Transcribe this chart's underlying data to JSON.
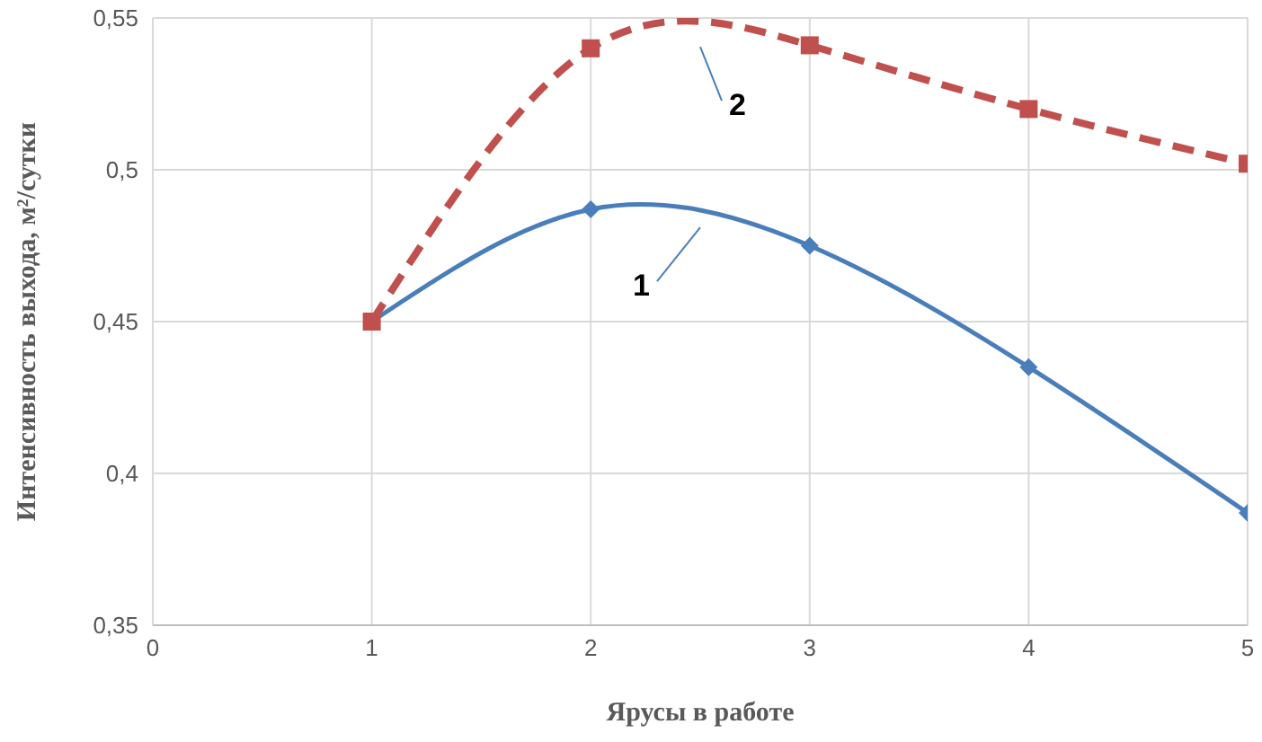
{
  "chart_data": {
    "type": "line",
    "xlabel": "Ярусы в работе",
    "ylabel": "Интенсивность выхода, м²/сутки",
    "x": [
      1,
      2,
      3,
      4,
      5
    ],
    "series": [
      {
        "name": "1",
        "color": "#4a7ebb",
        "values": [
          0.45,
          0.487,
          0.475,
          0.435,
          0.387
        ],
        "marker": "diamond",
        "line_style": "solid"
      },
      {
        "name": "2",
        "color": "#c0504d",
        "values": [
          0.45,
          0.54,
          0.541,
          0.52,
          0.502
        ],
        "marker": "square",
        "line_style": "dashed"
      }
    ],
    "xlim": [
      0,
      5
    ],
    "xticks": [
      0,
      1,
      2,
      3,
      4,
      5
    ],
    "ylim": [
      0.35,
      0.55
    ],
    "yticks": [
      {
        "value": 0.35,
        "label": "0,35"
      },
      {
        "value": 0.4,
        "label": "0,4"
      },
      {
        "value": 0.45,
        "label": "0,45"
      },
      {
        "value": 0.5,
        "label": "0,5"
      },
      {
        "value": 0.55,
        "label": "0,55"
      }
    ],
    "grid": true,
    "legend": false
  }
}
